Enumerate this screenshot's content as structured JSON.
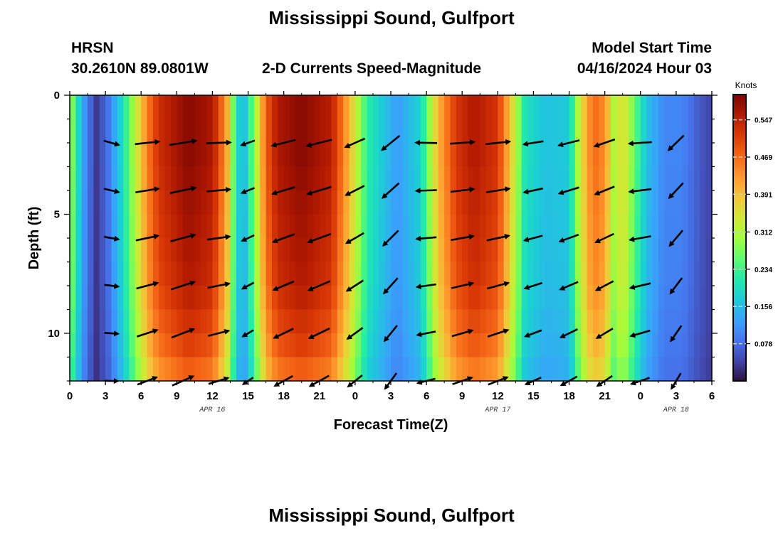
{
  "page": {
    "title": "Mississippi Sound, Gulfport",
    "bottom_title": "Mississippi Sound, Gulfport",
    "station_code": "HRSN",
    "coordinates": "30.2610N  89.0801W",
    "subtitle": "2-D Currents Speed-Magnitude",
    "model_label": "Model Start Time",
    "model_time": "04/16/2024 Hour 03"
  },
  "chart_data": {
    "type": "heatmap",
    "title": "2-D Currents Speed-Magnitude",
    "xlabel": "Forecast Time(Z)",
    "ylabel": "Depth (ft)",
    "x_range_hours": [
      0,
      54
    ],
    "y_range_ft": [
      0,
      12
    ],
    "x_ticks": [
      {
        "h": 0,
        "label": "0"
      },
      {
        "h": 3,
        "label": "3"
      },
      {
        "h": 6,
        "label": "6"
      },
      {
        "h": 9,
        "label": "9"
      },
      {
        "h": 12,
        "label": "12"
      },
      {
        "h": 15,
        "label": "15"
      },
      {
        "h": 18,
        "label": "18"
      },
      {
        "h": 21,
        "label": "21"
      },
      {
        "h": 24,
        "label": "0"
      },
      {
        "h": 27,
        "label": "3"
      },
      {
        "h": 30,
        "label": "6"
      },
      {
        "h": 33,
        "label": "9"
      },
      {
        "h": 36,
        "label": "12"
      },
      {
        "h": 39,
        "label": "15"
      },
      {
        "h": 42,
        "label": "18"
      },
      {
        "h": 45,
        "label": "21"
      },
      {
        "h": 48,
        "label": "0"
      },
      {
        "h": 51,
        "label": "3"
      },
      {
        "h": 54,
        "label": "6"
      }
    ],
    "date_labels": [
      {
        "h": 12,
        "label": "APR 16"
      },
      {
        "h": 36,
        "label": "APR 17"
      },
      {
        "h": 51,
        "label": "APR 18"
      }
    ],
    "y_ticks": [
      {
        "ft": 0,
        "label": "0"
      },
      {
        "ft": 5,
        "label": "5"
      },
      {
        "ft": 10,
        "label": "10"
      }
    ],
    "colorbar": {
      "unit": "Knots",
      "min": 0,
      "max": 0.6,
      "ticks": [
        0.078,
        0.156,
        0.234,
        0.312,
        0.391,
        0.469,
        0.547
      ],
      "tick_labels": [
        "0.078",
        "0.156",
        "0.234",
        "0.312",
        "0.391",
        "0.469",
        "0.547"
      ]
    },
    "speed_profile": [
      {
        "h": 0,
        "v": 0.32
      },
      {
        "h": 0.5,
        "v": 0.22
      },
      {
        "h": 1.2,
        "v": 0.12
      },
      {
        "h": 2.2,
        "v": 0.03
      },
      {
        "h": 3.2,
        "v": 0.08
      },
      {
        "h": 4.5,
        "v": 0.2
      },
      {
        "h": 5.5,
        "v": 0.32
      },
      {
        "h": 6.5,
        "v": 0.45
      },
      {
        "h": 7.5,
        "v": 0.53
      },
      {
        "h": 10,
        "v": 0.59
      },
      {
        "h": 12,
        "v": 0.56
      },
      {
        "h": 13.2,
        "v": 0.42
      },
      {
        "h": 14,
        "v": 0.2
      },
      {
        "h": 14.6,
        "v": 0.14
      },
      {
        "h": 15.5,
        "v": 0.28
      },
      {
        "h": 16.5,
        "v": 0.48
      },
      {
        "h": 17.5,
        "v": 0.56
      },
      {
        "h": 19.5,
        "v": 0.59
      },
      {
        "h": 22,
        "v": 0.55
      },
      {
        "h": 23.5,
        "v": 0.4
      },
      {
        "h": 25,
        "v": 0.22
      },
      {
        "h": 27.5,
        "v": 0.12
      },
      {
        "h": 29.5,
        "v": 0.18
      },
      {
        "h": 31,
        "v": 0.4
      },
      {
        "h": 32.5,
        "v": 0.52
      },
      {
        "h": 34,
        "v": 0.56
      },
      {
        "h": 36,
        "v": 0.52
      },
      {
        "h": 37.3,
        "v": 0.35
      },
      {
        "h": 38.3,
        "v": 0.2
      },
      {
        "h": 40,
        "v": 0.16
      },
      {
        "h": 42,
        "v": 0.17
      },
      {
        "h": 43,
        "v": 0.35
      },
      {
        "h": 44,
        "v": 0.47
      },
      {
        "h": 45,
        "v": 0.44
      },
      {
        "h": 45.8,
        "v": 0.3
      },
      {
        "h": 46.5,
        "v": 0.37
      },
      {
        "h": 47.3,
        "v": 0.28
      },
      {
        "h": 48.5,
        "v": 0.16
      },
      {
        "h": 50,
        "v": 0.1
      },
      {
        "h": 51.5,
        "v": 0.1
      },
      {
        "h": 53,
        "v": 0.06
      },
      {
        "h": 54,
        "v": 0.04
      }
    ],
    "depth_factors": [
      1.0,
      1.0,
      1.0,
      0.99,
      0.98,
      0.97,
      0.96,
      0.95,
      0.93,
      0.9,
      0.87,
      0.82
    ],
    "vector_depths_ft": [
      2,
      4,
      6,
      8,
      10,
      12
    ],
    "vector_times_h": [
      3.5,
      6.5,
      9.5,
      12.5,
      15,
      18,
      21,
      24,
      27,
      30,
      33,
      36,
      39,
      42,
      45,
      48,
      51
    ],
    "vector_directions_deg": [
      -10,
      12,
      15,
      8,
      205,
      200,
      200,
      210,
      225,
      185,
      10,
      12,
      195,
      200,
      205,
      190,
      230
    ],
    "vector_lengths_px": [
      22,
      34,
      38,
      34,
      20,
      34,
      36,
      30,
      32,
      30,
      34,
      34,
      28,
      30,
      30,
      32,
      30
    ]
  }
}
